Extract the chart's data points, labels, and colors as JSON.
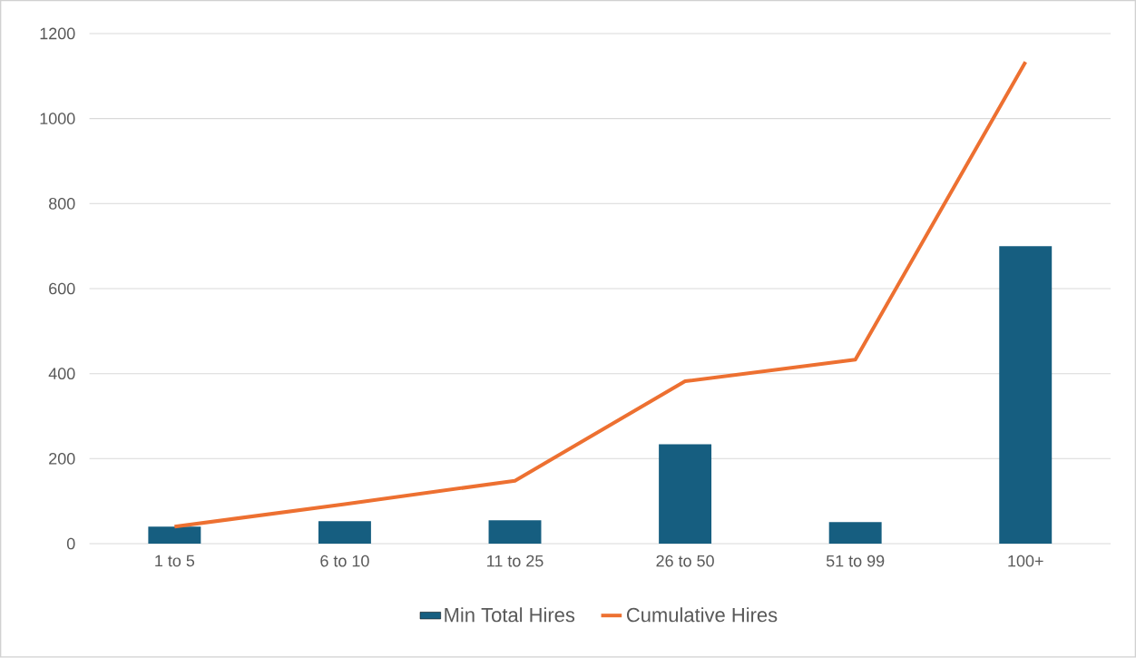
{
  "chart_data": {
    "type": "bar",
    "categories": [
      "1 to 5",
      "6 to 10",
      "11 to 25",
      "26 to 50",
      "51 to 99",
      "100+"
    ],
    "series": [
      {
        "name": "Min Total Hires",
        "color": "#165e80",
        "values": [
          40,
          53,
          55,
          234,
          51,
          700
        ]
      },
      {
        "name": "Cumulative Hires",
        "type": "line",
        "color": "#ed7031",
        "values": [
          40,
          93,
          148,
          382,
          433,
          1133
        ]
      }
    ],
    "ylim": [
      0,
      1200
    ],
    "yticks": [
      0,
      200,
      400,
      600,
      800,
      1000,
      1200
    ],
    "grid": "y",
    "legend": "bottom",
    "marker": "none",
    "line_style": "solid"
  }
}
